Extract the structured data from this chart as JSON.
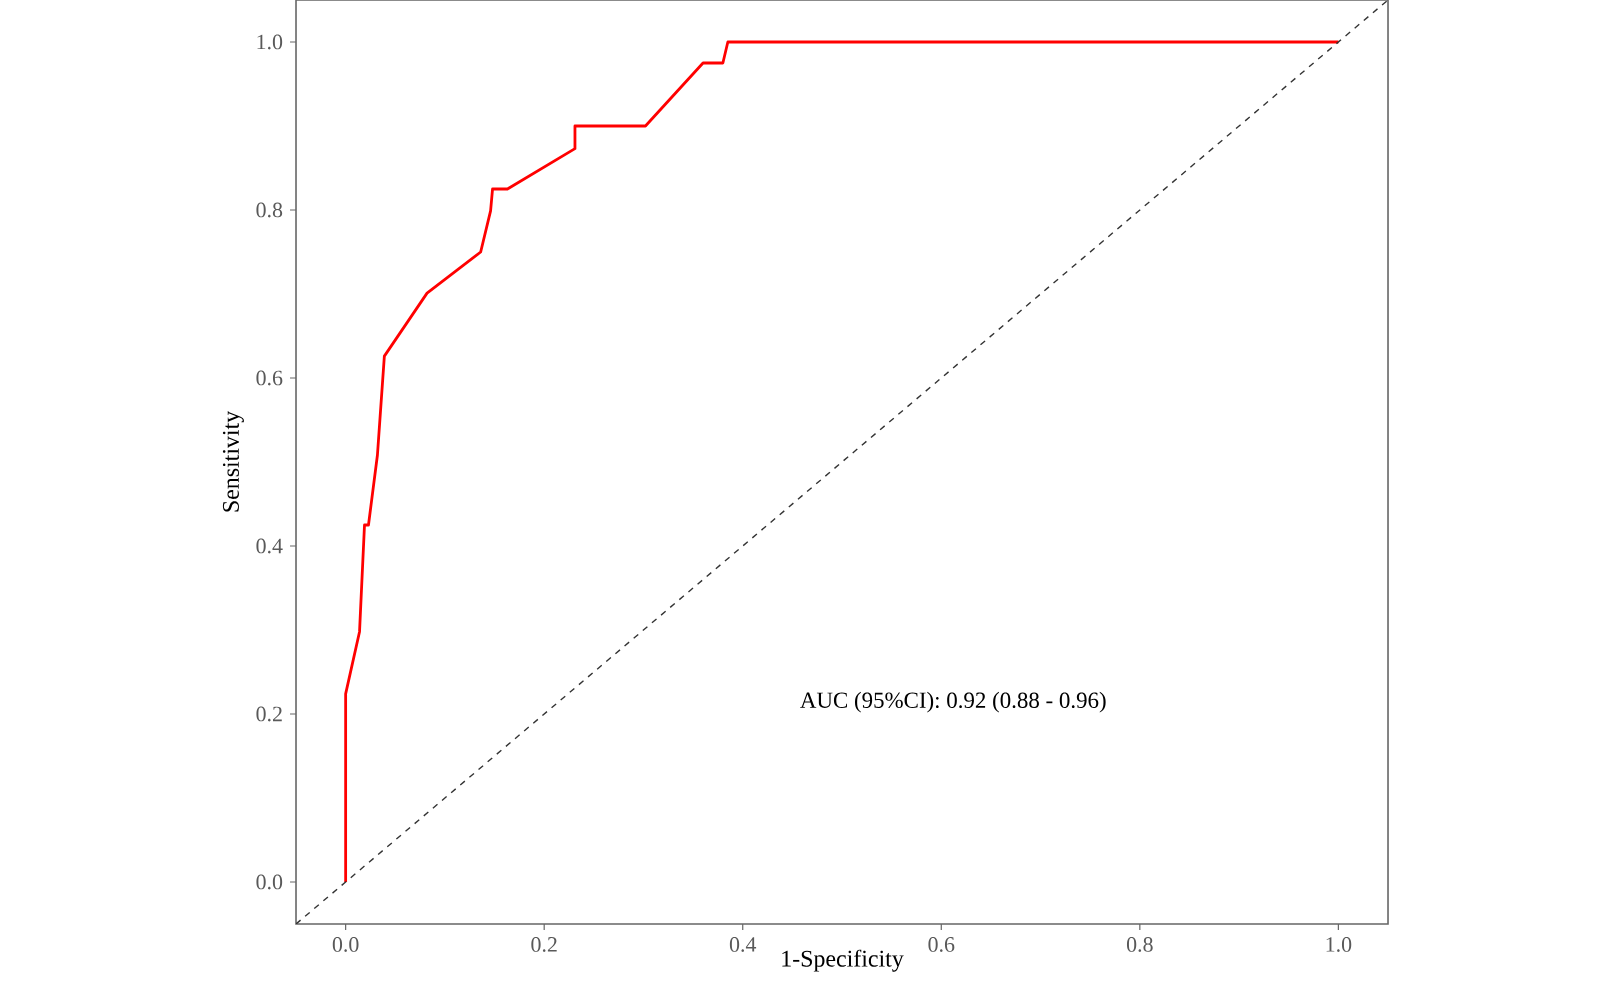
{
  "chart_data": {
    "type": "line",
    "xlabel": "1-Specificity",
    "ylabel": "Sensitivity",
    "xlim": [
      -0.05,
      1.05
    ],
    "ylim": [
      -0.05,
      1.05
    ],
    "xticks": [
      {
        "value": 0,
        "label": "0.0"
      },
      {
        "value": 0.2,
        "label": "0.2"
      },
      {
        "value": 0.4,
        "label": "0.4"
      },
      {
        "value": 0.6,
        "label": "0.6"
      },
      {
        "value": 0.8,
        "label": "0.8"
      },
      {
        "value": 1,
        "label": "1.0"
      }
    ],
    "yticks": [
      {
        "value": 0,
        "label": "0.0"
      },
      {
        "value": 0.2,
        "label": "0.2"
      },
      {
        "value": 0.4,
        "label": "0.4"
      },
      {
        "value": 0.6,
        "label": "0.6"
      },
      {
        "value": 0.8,
        "label": "0.8"
      },
      {
        "value": 1,
        "label": "1.0"
      }
    ],
    "grid": false,
    "marker": "none",
    "annotations": [
      "AUC (95%CI): 0.92 (0.88 - 0.96)"
    ],
    "series": [
      {
        "color": "#ff0000",
        "line_style": "solid",
        "x": [
          0,
          0,
          0.014,
          0.019,
          0.023,
          0.032,
          0.039,
          0.082,
          0.136,
          0.146,
          0.148,
          0.163,
          0.231,
          0.231,
          0.302,
          0.36,
          0.38,
          0.385,
          1.0
        ],
        "values": [
          0,
          0.224,
          0.298,
          0.425,
          0.425,
          0.508,
          0.626,
          0.701,
          0.75,
          0.799,
          0.825,
          0.825,
          0.873,
          0.9,
          0.9,
          0.975,
          0.975,
          1.0,
          1.0
        ]
      },
      {
        "color": "#333333",
        "line_style": "dashed",
        "x": [
          -0.05,
          1.05
        ],
        "values": [
          -0.05,
          1.05
        ]
      }
    ]
  }
}
